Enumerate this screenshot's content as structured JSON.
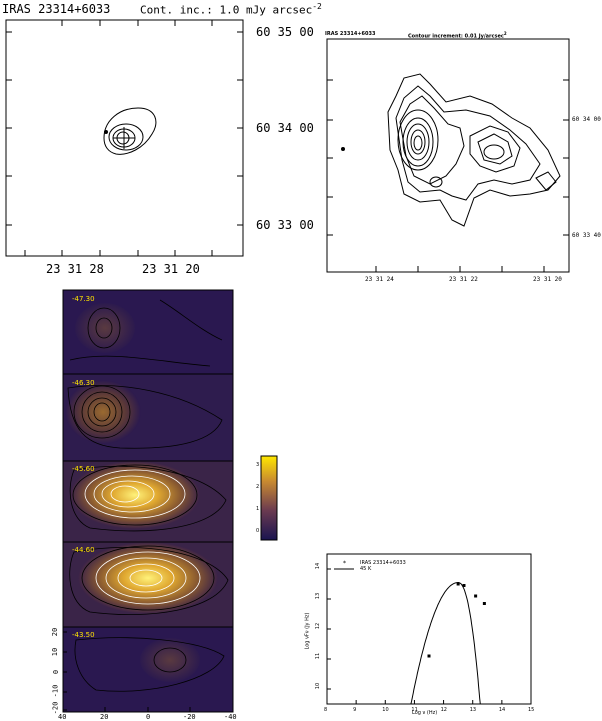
{
  "panel_a": {
    "title": "IRAS 23314+6033",
    "contour_label": "Cont. inc.: 1.0 mJy arcsec",
    "contour_label_exp": "-2",
    "ra_ticks": [
      "23 31 28",
      "23 31 20"
    ],
    "dec_ticks": [
      "60 35 00",
      "60 34 00",
      "60 33 00"
    ]
  },
  "panel_b": {
    "title": "IRAS 23314+6033",
    "contour_label": "Contour increment: 0.01 Jy/arcsec",
    "contour_label_exp": "2",
    "ra_ticks": [
      "23 31 24",
      "23 31 22",
      "23 31 20"
    ],
    "dec_ticks": [
      "60 34 00",
      "60 33 40"
    ]
  },
  "panel_c": {
    "channels": [
      "-47.30",
      "-46.30",
      "-45.60",
      "-44.60",
      "-43.50"
    ],
    "x_ticks": [
      "40",
      "20",
      "0",
      "-20",
      "-40"
    ],
    "y_ticks": [
      "20",
      "10",
      "0",
      "-10",
      "-20"
    ],
    "colorbar_ticks": [
      "3",
      "2",
      "1",
      "0"
    ],
    "colors": {
      "dark": "#2a1850",
      "mid": "#8a5a30",
      "bright": "#ffe400"
    }
  },
  "chart_data": {
    "type": "scatter",
    "legend_entries": [
      "IRAS 23314+6033",
      "45 K"
    ],
    "xlabel": "Log ν (Hz)",
    "ylabel": "Log νFν (Jy Hz)",
    "xlim": [
      8,
      15
    ],
    "ylim": [
      9.5,
      14.5
    ],
    "x_ticks": [
      "8",
      "9",
      "10",
      "11",
      "12",
      "13",
      "14",
      "15"
    ],
    "y_ticks": [
      "10",
      "11",
      "12",
      "13",
      "14"
    ],
    "points": [
      {
        "x": 11.5,
        "y": 11.1
      },
      {
        "x": 12.5,
        "y": 13.5
      },
      {
        "x": 12.7,
        "y": 13.45
      },
      {
        "x": 13.1,
        "y": 13.1
      },
      {
        "x": 13.4,
        "y": 12.85
      }
    ],
    "model_curve": {
      "peak_x": 12.5,
      "peak_y": 13.55
    }
  }
}
